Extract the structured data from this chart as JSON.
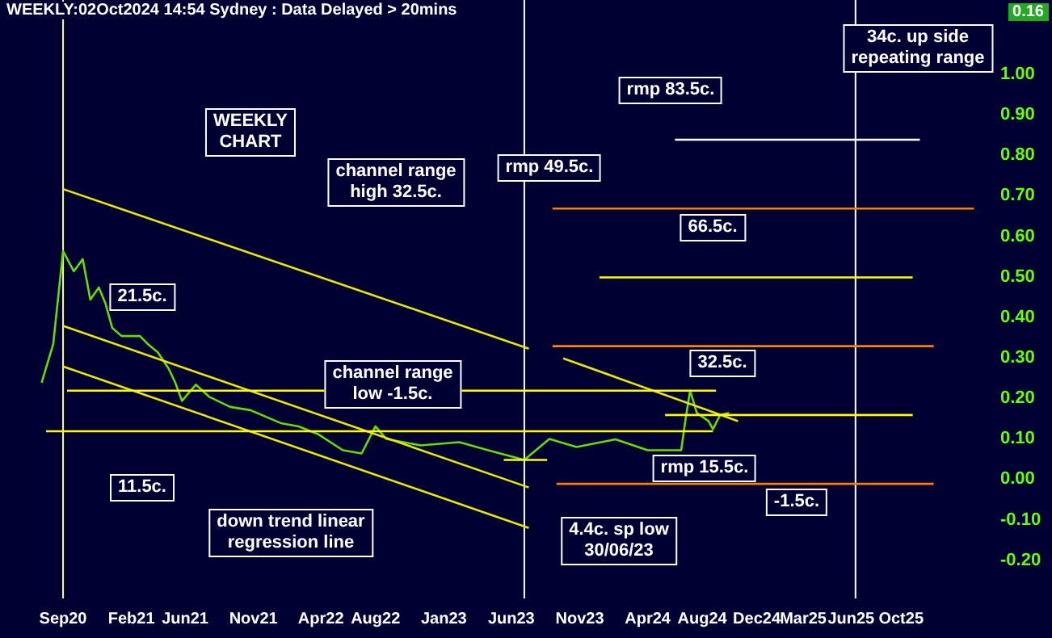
{
  "chart_data": {
    "type": "line",
    "title": "WEEKLY:02Oct2024 14:54 Sydney : Data Delayed > 20mins",
    "xlim": [
      "2020-05",
      "2026-05"
    ],
    "xticks": [
      {
        "value": "2020-09",
        "label": "Sep20"
      },
      {
        "value": "2021-02",
        "label": "Feb21"
      },
      {
        "value": "2021-06",
        "label": "Jun21"
      },
      {
        "value": "2021-11",
        "label": "Nov21"
      },
      {
        "value": "2022-04",
        "label": "Apr22"
      },
      {
        "value": "2022-08",
        "label": "Aug22"
      },
      {
        "value": "2023-01",
        "label": "Jan23"
      },
      {
        "value": "2023-06",
        "label": "Jun23"
      },
      {
        "value": "2023-11",
        "label": "Nov23"
      },
      {
        "value": "2024-04",
        "label": "Apr24"
      },
      {
        "value": "2024-08",
        "label": "Aug24"
      },
      {
        "value": "2024-12-01",
        "label": "Dec24"
      },
      {
        "value": "2025-03-15",
        "label": "Mar25"
      },
      {
        "value": "2025-06-30",
        "label": "Jun25"
      },
      {
        "value": "2025-10-20",
        "label": "Oct25"
      }
    ],
    "ylim": [
      -0.3,
      1.18
    ],
    "yticks": [
      {
        "value": -0.2,
        "label": "-0.20"
      },
      {
        "value": -0.1,
        "label": "-0.10"
      },
      {
        "value": 0,
        "label": "0.00"
      },
      {
        "value": 0.1,
        "label": "0.10"
      },
      {
        "value": 0.2,
        "label": "0.20"
      },
      {
        "value": 0.3,
        "label": "0.30"
      },
      {
        "value": 0.4,
        "label": "0.40"
      },
      {
        "value": 0.5,
        "label": "0.50"
      },
      {
        "value": 0.6,
        "label": "0.60"
      },
      {
        "value": 0.7,
        "label": "0.70"
      },
      {
        "value": 0.8,
        "label": "0.80"
      },
      {
        "value": 0.9,
        "label": "0.90"
      },
      {
        "value": 1,
        "label": "1.00"
      }
    ],
    "grid": false,
    "legend": false,
    "marker": "none",
    "line_style": "solid",
    "series": [
      {
        "type": "line",
        "color": "#66dd00",
        "x": [
          "2020-07-15",
          "2020-08-10",
          "2020-09-01",
          "2020-09-25",
          "2020-10-15",
          "2020-11-01",
          "2020-11-20",
          "2020-12-05",
          "2020-12-20",
          "2021-01-10",
          "2021-02-20",
          "2021-03-10",
          "2021-04-01",
          "2021-04-25",
          "2021-05-10",
          "2021-05-25",
          "2021-06-25",
          "2021-07-25",
          "2021-09-10",
          "2021-10-25",
          "2022-01-01",
          "2022-02-10",
          "2022-03-25",
          "2022-05-20",
          "2022-07-01",
          "2022-08-01",
          "2022-08-25",
          "2022-11-10",
          "2023-02-05",
          "2023-04-10",
          "2023-06-30",
          "2023-08-25",
          "2023-10-25",
          "2024-01-20",
          "2024-04-01",
          "2024-06-15",
          "2024-06-25",
          "2024-07-05",
          "2024-07-20",
          "2024-08-15",
          "2024-08-25",
          "2024-09-10",
          "2024-09-30"
        ],
        "values": [
          0.235,
          0.33,
          0.56,
          0.51,
          0.54,
          0.44,
          0.47,
          0.43,
          0.37,
          0.35,
          0.35,
          0.33,
          0.31,
          0.27,
          0.235,
          0.19,
          0.23,
          0.2,
          0.175,
          0.167,
          0.135,
          0.127,
          0.108,
          0.068,
          0.06,
          0.127,
          0.096,
          0.08,
          0.088,
          0.068,
          0.044,
          0.096,
          0.076,
          0.095,
          0.068,
          0.068,
          0.147,
          0.215,
          0.16,
          0.14,
          0.12,
          0.155,
          0.16
        ]
      },
      {
        "type": "line",
        "color": "#e8e800",
        "x": [
          "2020-09-01",
          "2023-07-10"
        ],
        "values": [
          0.713,
          0.319
        ]
      },
      {
        "type": "line",
        "color": "#e8e800",
        "x": [
          "2020-09-01",
          "2023-07-10"
        ],
        "values": [
          0.375,
          -0.024
        ]
      },
      {
        "type": "line",
        "color": "#e8e800",
        "x": [
          "2020-09-01",
          "2023-07-10"
        ],
        "values": [
          0.275,
          -0.124
        ]
      },
      {
        "type": "line",
        "color": "#e8e800",
        "x": [
          "2023-09-25",
          "2024-10-20"
        ],
        "values": [
          0.295,
          0.14
        ]
      },
      {
        "type": "line",
        "color": "#ffff00",
        "x": [
          "2020-09-10",
          "2024-09-01"
        ],
        "values": [
          0.215,
          0.215
        ]
      },
      {
        "type": "line",
        "color": "#ffff00",
        "x": [
          "2020-07-25",
          "2024-08-25"
        ],
        "values": [
          0.115,
          0.115
        ]
      },
      {
        "type": "line",
        "color": "#ffff00",
        "x": [
          "2023-05-15",
          "2023-08-20"
        ],
        "values": [
          0.044,
          0.044
        ]
      },
      {
        "type": "line",
        "color": "#ff8000",
        "x": [
          "2023-09-01",
          "2026-04-01"
        ],
        "values": [
          0.665,
          0.665
        ]
      },
      {
        "type": "line",
        "color": "#ff8000",
        "x": [
          "2023-09-01",
          "2026-01-01"
        ],
        "values": [
          0.325,
          0.325
        ]
      },
      {
        "type": "line",
        "color": "#ff8000",
        "x": [
          "2023-09-10",
          "2026-01-01"
        ],
        "values": [
          -0.015,
          -0.015
        ]
      },
      {
        "type": "line",
        "color": "#ffffff",
        "x": [
          "2024-06-01",
          "2025-12-01"
        ],
        "values": [
          0.835,
          0.835
        ]
      },
      {
        "type": "line",
        "color": "#ffff00",
        "x": [
          "2023-12-15",
          "2025-11-15"
        ],
        "values": [
          0.495,
          0.495
        ]
      },
      {
        "type": "line",
        "color": "#ffff00",
        "x": [
          "2024-05-10",
          "2025-11-15"
        ],
        "values": [
          0.155,
          0.155
        ]
      }
    ],
    "ref_lines": [
      {
        "axis": "x",
        "value": "2020-09-01",
        "color": "#ffff66"
      },
      {
        "axis": "x",
        "value": "2023-06-30",
        "color": "#ffffff"
      },
      {
        "axis": "x",
        "value": "2025-07-10",
        "color": "#ffffff"
      }
    ],
    "annotations": [
      "WEEKLY\nCHART",
      "channel range\nhigh 32.5c.",
      "21.5c.",
      "11.5c.",
      "channel range\nlow -1.5c.",
      "down trend linear\nregression line",
      "4.4c. sp low\n30/06/23",
      "rmp 83.5c.",
      "rmp 49.5c.",
      "66.5c.",
      "32.5c.",
      "rmp 15.5c.",
      "-1.5c.",
      "34c. up side\nrepeating range",
      "0.16"
    ]
  }
}
